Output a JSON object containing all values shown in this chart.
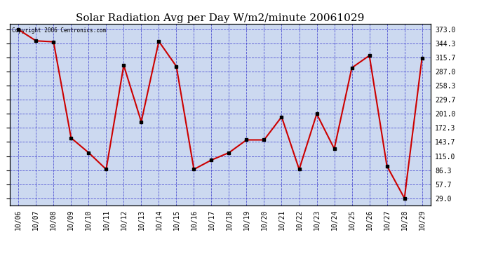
{
  "title": "Solar Radiation Avg per Day W/m2/minute 20061029",
  "copyright_text": "Copyright 2006 Centronics.com",
  "dates": [
    "10/06",
    "10/07",
    "10/08",
    "10/09",
    "10/10",
    "10/11",
    "10/12",
    "10/13",
    "10/14",
    "10/15",
    "10/16",
    "10/17",
    "10/18",
    "10/19",
    "10/20",
    "10/21",
    "10/22",
    "10/23",
    "10/24",
    "10/25",
    "10/26",
    "10/27",
    "10/28",
    "10/29"
  ],
  "values": [
    373.0,
    350.0,
    348.0,
    152.0,
    122.0,
    88.0,
    300.0,
    185.0,
    349.0,
    298.0,
    88.0,
    107.0,
    122.0,
    148.0,
    148.0,
    195.0,
    88.0,
    201.0,
    130.0,
    295.0,
    320.0,
    95.0,
    29.0,
    315.0
  ],
  "line_color": "#cc0000",
  "marker_color": "#000000",
  "bg_color": "#ffffff",
  "plot_bg_color": "#ccd9f0",
  "grid_color": "#3333cc",
  "title_fontsize": 11,
  "yticks": [
    29.0,
    57.7,
    86.3,
    115.0,
    143.7,
    172.3,
    201.0,
    229.7,
    258.3,
    287.0,
    315.7,
    344.3,
    373.0
  ],
  "ylim": [
    15,
    385
  ],
  "figsize": [
    6.9,
    3.75
  ],
  "dpi": 100
}
